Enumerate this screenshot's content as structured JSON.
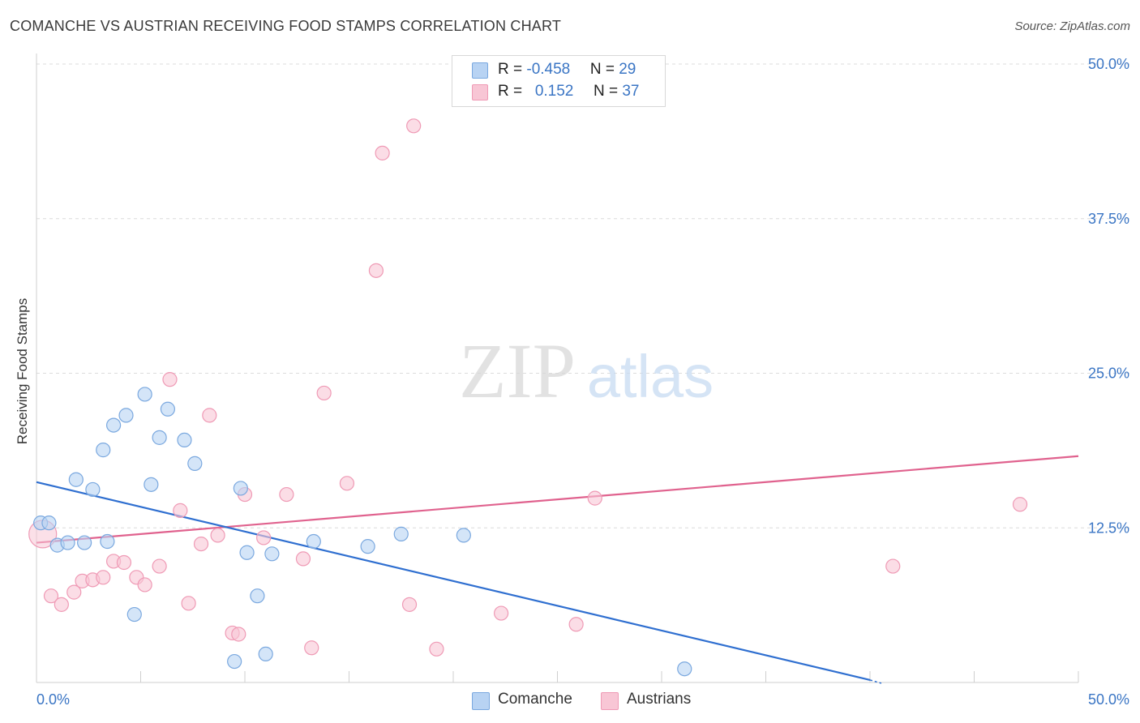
{
  "title": "COMANCHE VS AUSTRIAN RECEIVING FOOD STAMPS CORRELATION CHART",
  "source": "Source: ZipAtlas.com",
  "watermark": {
    "zip": "ZIP",
    "atlas": "atlas"
  },
  "legend": {
    "rows": [
      {
        "r_label": "R = ",
        "r_value": "-0.458",
        "n_label": "N = ",
        "n_value": "29"
      },
      {
        "r_label": "R = ",
        "r_value": "0.152",
        "n_label": "N = ",
        "n_value": "37"
      }
    ]
  },
  "bottom_legend": [
    {
      "label": "Comanche"
    },
    {
      "label": "Austrians"
    }
  ],
  "colors": {
    "comanche_fill": "#b8d3f3",
    "comanche_stroke": "#7aa8df",
    "comanche_line": "#2f6fd0",
    "austrians_fill": "#f8c6d5",
    "austrians_stroke": "#ef9ab5",
    "austrians_line": "#e0628e",
    "axis_text": "#3a75c4"
  },
  "chart_data": {
    "type": "scatter",
    "title": "COMANCHE VS AUSTRIAN RECEIVING FOOD STAMPS CORRELATION CHART",
    "xlabel": "",
    "ylabel": "Receiving Food Stamps",
    "xlim": [
      0,
      50
    ],
    "ylim": [
      0,
      50
    ],
    "x_tick_labels": [
      "0.0%",
      "50.0%"
    ],
    "y_tick_values": [
      12.5,
      25.0,
      37.5,
      50.0
    ],
    "y_tick_labels": [
      "12.5%",
      "25.0%",
      "37.5%",
      "50.0%"
    ],
    "grid": true,
    "legend_position": "top-center",
    "series": [
      {
        "name": "Comanche",
        "r": -0.458,
        "n": 29,
        "points": [
          [
            0.2,
            12.9
          ],
          [
            0.6,
            12.9
          ],
          [
            1.0,
            11.1
          ],
          [
            1.5,
            11.3
          ],
          [
            1.9,
            16.4
          ],
          [
            2.3,
            11.3
          ],
          [
            2.7,
            15.6
          ],
          [
            3.2,
            18.8
          ],
          [
            3.4,
            11.4
          ],
          [
            3.7,
            20.8
          ],
          [
            4.3,
            21.6
          ],
          [
            4.7,
            5.5
          ],
          [
            5.2,
            23.3
          ],
          [
            5.5,
            16.0
          ],
          [
            5.9,
            19.8
          ],
          [
            6.3,
            22.1
          ],
          [
            7.1,
            19.6
          ],
          [
            7.6,
            17.7
          ],
          [
            9.5,
            1.7
          ],
          [
            9.8,
            15.7
          ],
          [
            10.1,
            10.5
          ],
          [
            10.6,
            7.0
          ],
          [
            11.0,
            2.3
          ],
          [
            11.3,
            10.4
          ],
          [
            13.3,
            11.4
          ],
          [
            15.9,
            11.0
          ],
          [
            17.5,
            12.0
          ],
          [
            20.5,
            11.9
          ],
          [
            31.1,
            1.1
          ]
        ],
        "trend": {
          "x": [
            0,
            40
          ],
          "y": [
            16.2,
            0.2
          ]
        }
      },
      {
        "name": "Austrians",
        "r": 0.152,
        "n": 37,
        "points": [
          [
            0.3,
            12.0
          ],
          [
            0.7,
            7.0
          ],
          [
            1.2,
            6.3
          ],
          [
            1.8,
            7.3
          ],
          [
            2.2,
            8.2
          ],
          [
            2.7,
            8.3
          ],
          [
            3.2,
            8.5
          ],
          [
            3.7,
            9.8
          ],
          [
            4.2,
            9.7
          ],
          [
            4.8,
            8.5
          ],
          [
            5.2,
            7.9
          ],
          [
            5.9,
            9.4
          ],
          [
            6.4,
            24.5
          ],
          [
            6.9,
            13.9
          ],
          [
            7.3,
            6.4
          ],
          [
            7.9,
            11.2
          ],
          [
            8.3,
            21.6
          ],
          [
            8.7,
            11.9
          ],
          [
            9.4,
            4.0
          ],
          [
            9.7,
            3.9
          ],
          [
            10.0,
            15.2
          ],
          [
            10.9,
            11.7
          ],
          [
            12.0,
            15.2
          ],
          [
            12.8,
            10.0
          ],
          [
            13.2,
            2.8
          ],
          [
            13.8,
            23.4
          ],
          [
            14.9,
            16.1
          ],
          [
            16.3,
            33.3
          ],
          [
            16.6,
            42.8
          ],
          [
            17.9,
            6.3
          ],
          [
            18.1,
            45.0
          ],
          [
            19.2,
            2.7
          ],
          [
            22.3,
            5.6
          ],
          [
            25.9,
            4.7
          ],
          [
            26.8,
            14.9
          ],
          [
            41.1,
            9.4
          ],
          [
            47.2,
            14.4
          ]
        ],
        "trend": {
          "x": [
            0,
            50
          ],
          "y": [
            11.3,
            18.3
          ]
        }
      }
    ]
  }
}
